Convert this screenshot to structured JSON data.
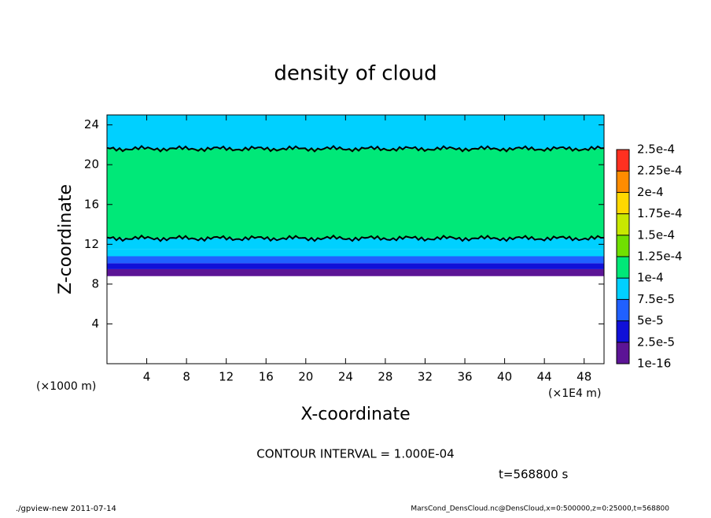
{
  "chart_data": {
    "type": "contour",
    "title": "density of cloud",
    "x_label": "X-coordinate",
    "y_label": "Z-coordinate",
    "y_unit": "(×1000 m)",
    "x_unit": "(×1E4 m)",
    "contour_interval": "CONTOUR INTERVAL = 1.000E-04",
    "time": "t=568800 s",
    "footer_left": "./gpview-new  2011-07-14",
    "footer_right": "MarsCond_DensCloud.nc@DensCloud,x=0:500000,z=0:25000,t=568800",
    "xlim": [
      0,
      50
    ],
    "ylim": [
      0,
      25
    ],
    "xticks": [
      4,
      8,
      12,
      16,
      20,
      24,
      28,
      32,
      36,
      40,
      44,
      48
    ],
    "yticks": [
      4,
      8,
      12,
      16,
      20,
      24
    ],
    "field_z": [
      8.8,
      9.5,
      10.1,
      10.8,
      11.5,
      12.6,
      21.6,
      25
    ],
    "field_values": [
      1e-05,
      3e-05,
      6e-05,
      8e-05,
      9e-05,
      0.00011,
      9e-05
    ],
    "colorbar_ticks": [
      {
        "value": 1e-16,
        "label": "1e-16"
      },
      {
        "value": 2.5e-05,
        "label": "2.5e-5"
      },
      {
        "value": 5e-05,
        "label": "5e-5"
      },
      {
        "value": 7.5e-05,
        "label": "7.5e-5"
      },
      {
        "value": 0.0001,
        "label": "1e-4"
      },
      {
        "value": 0.000125,
        "label": "1.25e-4"
      },
      {
        "value": 0.00015,
        "label": "1.5e-4"
      },
      {
        "value": 0.000175,
        "label": "1.75e-4"
      },
      {
        "value": 0.0002,
        "label": "2e-4"
      },
      {
        "value": 0.000225,
        "label": "2.25e-4"
      },
      {
        "value": 0.00025,
        "label": "2.5e-4"
      }
    ],
    "colors": [
      "#5c1496",
      "#1010d8",
      "#2060ff",
      "#00d0ff",
      "#00e878",
      "#70e000",
      "#c8e800",
      "#ffd800",
      "#ff8c00",
      "#ff3020"
    ]
  }
}
